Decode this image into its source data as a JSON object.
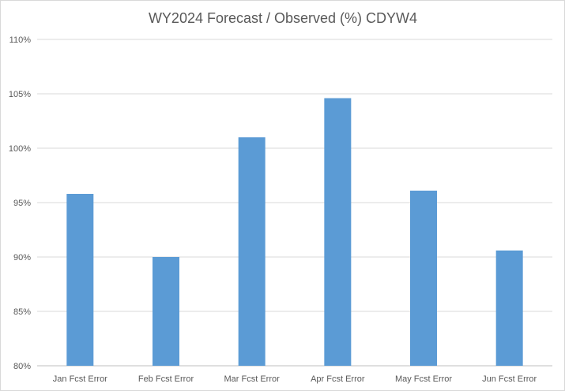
{
  "chart_data": {
    "type": "bar",
    "title": "WY2024 Forecast / Observed (%) CDYW4",
    "categories": [
      "Jan Fcst Error",
      "Feb Fcst Error",
      "Mar Fcst Error",
      "Apr Fcst Error",
      "May Fcst Error",
      "Jun Fcst Error"
    ],
    "values": [
      95.8,
      90.0,
      101.0,
      104.6,
      96.1,
      90.6
    ],
    "ylim": [
      80,
      110
    ],
    "yticks": [
      80,
      85,
      90,
      95,
      100,
      105,
      110
    ],
    "ytick_labels": [
      "80%",
      "85%",
      "90%",
      "95%",
      "100%",
      "105%",
      "110%"
    ],
    "grid": true,
    "legend": "none",
    "bar_color": "#5b9bd5"
  }
}
